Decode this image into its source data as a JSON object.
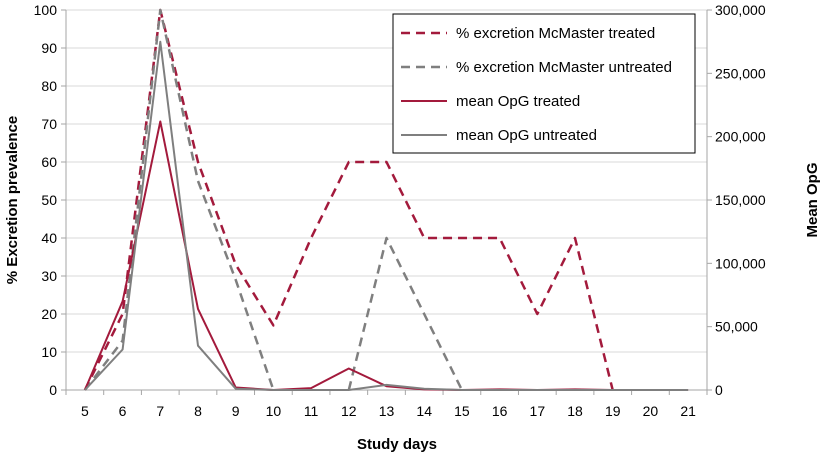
{
  "chart_data": {
    "type": "line",
    "title": "",
    "xlabel": "Study days",
    "ylabel": "% Excretion prevalence",
    "y2label": "Mean OpG",
    "x": [
      5,
      6,
      7,
      8,
      9,
      10,
      11,
      12,
      13,
      14,
      15,
      16,
      17,
      18,
      19,
      20,
      21
    ],
    "ylim": [
      0,
      100
    ],
    "y2lim": [
      0,
      300000
    ],
    "yticks": [
      "0",
      "10",
      "20",
      "30",
      "40",
      "50",
      "60",
      "70",
      "80",
      "90",
      "100"
    ],
    "y2ticks": [
      "0",
      "50,000",
      "100,000",
      "150,000",
      "200,000",
      "250,000",
      "300,000"
    ],
    "legend_position": "top-right",
    "series": [
      {
        "name": "% excretion McMaster treated",
        "axis": "left",
        "style": "dashed",
        "color": "#a31a3c",
        "values": [
          0,
          20,
          100,
          60,
          33,
          17,
          40,
          60,
          60,
          40,
          40,
          40,
          20,
          40,
          0,
          null,
          null
        ]
      },
      {
        "name": "% excretion McMaster untreated",
        "axis": "left",
        "style": "dashed",
        "color": "#7f7f7f",
        "values": [
          0,
          13,
          100,
          55,
          29,
          0,
          null,
          0,
          40,
          20,
          0,
          null,
          null,
          null,
          null,
          null,
          null
        ]
      },
      {
        "name": "mean OpG treated",
        "axis": "right",
        "style": "solid",
        "color": "#a31a3c",
        "values": [
          0,
          70000,
          212000,
          64000,
          2000,
          0,
          1500,
          17000,
          3000,
          500,
          0,
          500,
          0,
          500,
          0,
          0,
          0
        ]
      },
      {
        "name": "mean OpG untreated",
        "axis": "right",
        "style": "solid",
        "color": "#7f7f7f",
        "values": [
          0,
          32000,
          275000,
          35000,
          1000,
          0,
          0,
          0,
          4000,
          1000,
          0,
          0,
          0,
          0,
          0,
          0,
          0
        ]
      }
    ]
  }
}
